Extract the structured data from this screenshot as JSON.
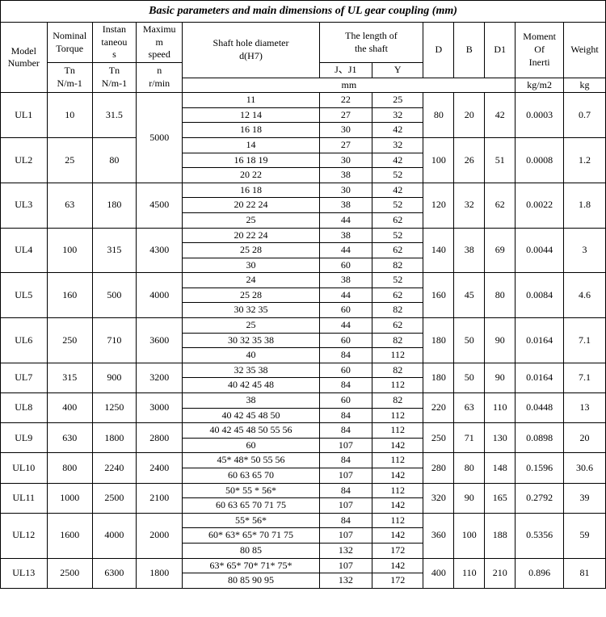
{
  "title": "Basic parameters and main dimensions of UL gear coupling (mm)",
  "headers": {
    "model": "Model\nNumber",
    "nominal": "Nominal\nTorque",
    "instant": "Instan\ntaneou\ns",
    "maxspeed": "Maximu\nm\nspeed",
    "shaft": "Shaft hole diameter\nd(H7)",
    "shaftlen": "The length of\nthe shaft",
    "jj1": "J、J1",
    "y": "Y",
    "d": "D",
    "b": "B",
    "d1": "D1",
    "moi": "Moment\nOf\nInerti",
    "wt": "Weight",
    "tn": "Tn\nN/m-1",
    "tn2": "Tn\nN/m-1",
    "nrmin": "n\nr/min",
    "mm": "mm",
    "kgm2": "kg/m2",
    "kg": "kg"
  },
  "rows": [
    {
      "model": "UL1",
      "tn": "10",
      "inst": "31.5",
      "speed": "5000",
      "speedRows": 6,
      "sub": [
        [
          "11",
          "22",
          "25"
        ],
        [
          "12 14",
          "27",
          "32"
        ],
        [
          "16 18",
          "30",
          "42"
        ]
      ],
      "d": "80",
      "b": "20",
      "d1": "42",
      "moi": "0.0003",
      "wt": "0.7"
    },
    {
      "model": "UL2",
      "tn": "25",
      "inst": "80",
      "speed": "",
      "sub": [
        [
          "14",
          "27",
          "32"
        ],
        [
          "16 18 19",
          "30",
          "42"
        ],
        [
          "20 22",
          "38",
          "52"
        ]
      ],
      "d": "100",
      "b": "26",
      "d1": "51",
      "moi": "0.0008",
      "wt": "1.2"
    },
    {
      "model": "UL3",
      "tn": "63",
      "inst": "180",
      "speed": "4500",
      "speedRows": 3,
      "sub": [
        [
          "16 18",
          "30",
          "42"
        ],
        [
          "20 22 24",
          "38",
          "52"
        ],
        [
          "25",
          "44",
          "62"
        ]
      ],
      "d": "120",
      "b": "32",
      "d1": "62",
      "moi": "0.0022",
      "wt": "1.8"
    },
    {
      "model": "UL4",
      "tn": "100",
      "inst": "315",
      "speed": "4300",
      "speedRows": 3,
      "sub": [
        [
          "20 22 24",
          "38",
          "52"
        ],
        [
          "25 28",
          "44",
          "62"
        ],
        [
          "30",
          "60",
          "82"
        ]
      ],
      "d": "140",
      "b": "38",
      "d1": "69",
      "moi": "0.0044",
      "wt": "3"
    },
    {
      "model": "UL5",
      "tn": "160",
      "inst": "500",
      "speed": "4000",
      "speedRows": 3,
      "sub": [
        [
          "24",
          "38",
          "52"
        ],
        [
          "25 28",
          "44",
          "62"
        ],
        [
          "30 32 35",
          "60",
          "82"
        ]
      ],
      "d": "160",
      "b": "45",
      "d1": "80",
      "moi": "0.0084",
      "wt": "4.6"
    },
    {
      "model": "UL6",
      "tn": "250",
      "inst": "710",
      "speed": "3600",
      "speedRows": 3,
      "sub": [
        [
          "25",
          "44",
          "62"
        ],
        [
          "30 32 35 38",
          "60",
          "82"
        ],
        [
          "40",
          "84",
          "112"
        ]
      ],
      "d": "180",
      "b": "50",
      "d1": "90",
      "moi": "0.0164",
      "wt": "7.1"
    },
    {
      "model": "UL7",
      "tn": "315",
      "inst": "900",
      "speed": "3200",
      "speedRows": 2,
      "sub": [
        [
          "32 35 38",
          "60",
          "82"
        ],
        [
          "40 42 45 48",
          "84",
          "112"
        ]
      ],
      "d": "180",
      "b": "50",
      "d1": "90",
      "moi": "0.0164",
      "wt": "7.1"
    },
    {
      "model": "UL8",
      "tn": "400",
      "inst": "1250",
      "speed": "3000",
      "speedRows": 2,
      "sub": [
        [
          "38",
          "60",
          "82"
        ],
        [
          "40 42 45 48 50",
          "84",
          "112"
        ]
      ],
      "d": "220",
      "b": "63",
      "d1": "110",
      "moi": "0.0448",
      "wt": "13"
    },
    {
      "model": "UL9",
      "tn": "630",
      "inst": "1800",
      "speed": "2800",
      "speedRows": 2,
      "sub": [
        [
          "40 42 45 48 50 55 56",
          "84",
          "112"
        ],
        [
          "60",
          "107",
          "142"
        ]
      ],
      "d": "250",
      "b": "71",
      "d1": "130",
      "moi": "0.0898",
      "wt": "20"
    },
    {
      "model": "UL10",
      "tn": "800",
      "inst": "2240",
      "speed": "2400",
      "speedRows": 2,
      "sub": [
        [
          "45* 48* 50 55 56",
          "84",
          "112"
        ],
        [
          "60 63 65 70",
          "107",
          "142"
        ]
      ],
      "d": "280",
      "b": "80",
      "d1": "148",
      "moi": "0.1596",
      "wt": "30.6"
    },
    {
      "model": "UL11",
      "tn": "1000",
      "inst": "2500",
      "speed": "2100",
      "speedRows": 2,
      "sub": [
        [
          "50* 55 * 56*",
          "84",
          "112"
        ],
        [
          "60 63 65 70 71 75",
          "107",
          "142"
        ]
      ],
      "d": "320",
      "b": "90",
      "d1": "165",
      "moi": "0.2792",
      "wt": "39"
    },
    {
      "model": "UL12",
      "tn": "1600",
      "inst": "4000",
      "speed": "2000",
      "speedRows": 3,
      "sub": [
        [
          "55* 56*",
          "84",
          "112"
        ],
        [
          "60* 63* 65* 70 71 75",
          "107",
          "142"
        ],
        [
          "80 85",
          "132",
          "172"
        ]
      ],
      "d": "360",
      "b": "100",
      "d1": "188",
      "moi": "0.5356",
      "wt": "59"
    },
    {
      "model": "UL13",
      "tn": "2500",
      "inst": "6300",
      "speed": "1800",
      "speedRows": 2,
      "sub": [
        [
          "63* 65* 70* 71* 75*",
          "107",
          "142"
        ],
        [
          "80 85 90 95",
          "132",
          "172"
        ]
      ],
      "d": "400",
      "b": "110",
      "d1": "210",
      "moi": "0.896",
      "wt": "81"
    }
  ]
}
